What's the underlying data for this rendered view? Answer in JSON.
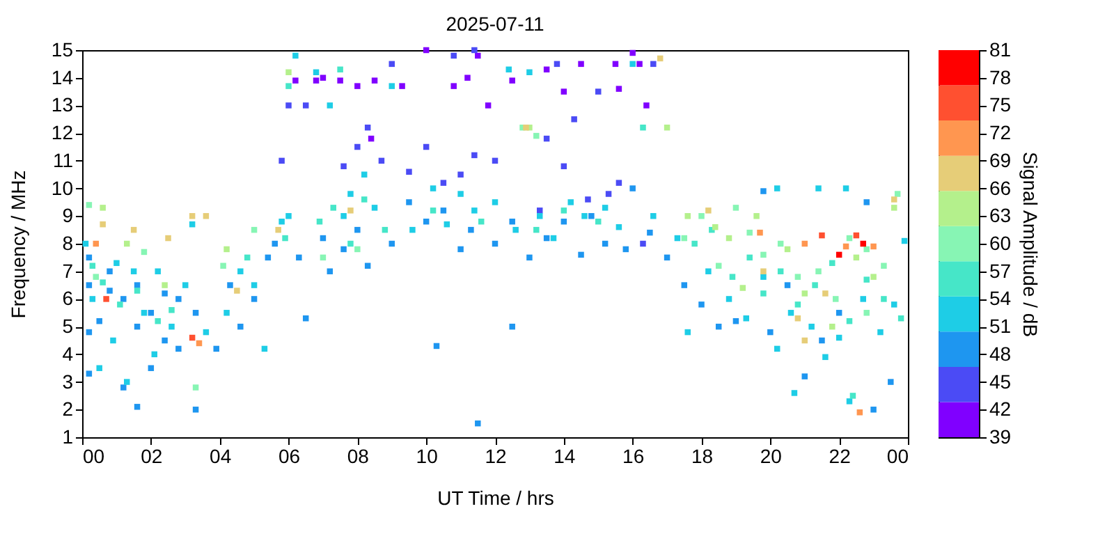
{
  "chart_data": {
    "type": "scatter",
    "title": "2025-07-11",
    "xlabel": "UT Time / hrs",
    "ylabel": "Frequency / MHz",
    "clabel": "Signal Amplitude / dB",
    "xlim": [
      0,
      24
    ],
    "xticks": [
      {
        "value": 0,
        "label": "00"
      },
      {
        "value": 2,
        "label": "02"
      },
      {
        "value": 4,
        "label": "04"
      },
      {
        "value": 6,
        "label": "06"
      },
      {
        "value": 8,
        "label": "08"
      },
      {
        "value": 10,
        "label": "10"
      },
      {
        "value": 12,
        "label": "12"
      },
      {
        "value": 14,
        "label": "14"
      },
      {
        "value": 16,
        "label": "16"
      },
      {
        "value": 18,
        "label": "18"
      },
      {
        "value": 20,
        "label": "20"
      },
      {
        "value": 22,
        "label": "22"
      },
      {
        "value": 24,
        "label": "00"
      }
    ],
    "ylim": [
      1,
      15
    ],
    "yticks": [
      1,
      2,
      3,
      4,
      5,
      6,
      7,
      8,
      9,
      10,
      11,
      12,
      13,
      14,
      15
    ],
    "clim": [
      39,
      81
    ],
    "cticks": [
      39,
      42,
      45,
      48,
      51,
      54,
      57,
      60,
      63,
      66,
      69,
      72,
      75,
      78,
      81
    ],
    "marker": "square",
    "grid": false,
    "legend": false,
    "series": [
      {
        "color": "#8000ff",
        "x": [
          6.2,
          6.8,
          7.5,
          8.0,
          8.5,
          9.3,
          10.0,
          11.2,
          11.8,
          12.5,
          13.5,
          14.5,
          15.5,
          16.0,
          15.6,
          16.4,
          8.4,
          14.0,
          16.2,
          7.0,
          10.8,
          11.5
        ],
        "values": [
          13.9,
          13.9,
          13.9,
          13.7,
          13.9,
          13.7,
          15.0,
          14.0,
          13.0,
          13.9,
          14.3,
          14.5,
          14.5,
          14.9,
          13.6,
          13.0,
          11.8,
          13.5,
          14.5,
          14.0,
          13.7,
          14.8
        ]
      },
      {
        "color": "#4b4bf5",
        "x": [
          7.6,
          8.0,
          8.3,
          8.7,
          9.5,
          10.0,
          10.5,
          11.0,
          11.4,
          12.0,
          13.5,
          14.0,
          13.3,
          14.7,
          15.3,
          15.6,
          16.3,
          6.0,
          6.5,
          9.0,
          10.8,
          11.4,
          13.8,
          15.0,
          5.8,
          16.6,
          14.3
        ],
        "values": [
          10.8,
          11.5,
          12.2,
          11.0,
          10.6,
          11.5,
          10.2,
          10.5,
          11.2,
          11.0,
          11.8,
          10.8,
          9.2,
          9.6,
          9.8,
          10.2,
          8.0,
          13.0,
          13.0,
          14.5,
          14.8,
          15.0,
          14.5,
          13.5,
          11.0,
          14.5,
          12.5
        ]
      },
      {
        "color": "#1e96f0",
        "x": [
          0.2,
          0.2,
          0.2,
          0.2,
          0.5,
          0.8,
          0.8,
          1.2,
          1.2,
          1.6,
          1.6,
          1.6,
          2.0,
          2.0,
          2.4,
          2.4,
          2.8,
          2.8,
          3.3,
          3.3,
          3.9,
          4.3,
          4.6,
          5.0,
          5.4,
          5.6,
          6.3,
          6.5,
          7.0,
          7.2,
          7.6,
          8.0,
          8.3,
          9.0,
          9.5,
          10.0,
          10.5,
          11.0,
          11.3,
          12.0,
          12.5,
          13.0,
          13.5,
          14.0,
          14.5,
          15.2,
          15.8,
          16.5,
          17.0,
          17.5,
          18.0,
          18.5,
          19.0,
          20.0,
          20.5,
          21.0,
          21.5,
          22.0,
          23.0,
          23.5,
          14.8,
          16.0,
          10.3,
          11.5,
          12.5,
          19.8,
          22.8
        ],
        "values": [
          7.5,
          6.5,
          4.8,
          3.3,
          5.2,
          7.0,
          6.3,
          2.8,
          6.0,
          6.5,
          5.0,
          2.1,
          5.5,
          3.5,
          6.2,
          4.5,
          6.0,
          4.2,
          5.5,
          2.0,
          4.2,
          6.5,
          5.0,
          6.0,
          7.5,
          8.0,
          7.5,
          5.3,
          8.2,
          7.0,
          7.8,
          8.5,
          7.2,
          8.0,
          9.5,
          8.8,
          9.2,
          7.8,
          8.5,
          8.0,
          8.8,
          7.5,
          8.2,
          8.8,
          7.6,
          8.0,
          7.8,
          8.4,
          7.5,
          6.5,
          5.8,
          5.0,
          5.2,
          4.8,
          6.5,
          3.2,
          4.5,
          5.5,
          2.0,
          3.0,
          9.0,
          10.0,
          4.3,
          1.5,
          5.0,
          9.9,
          9.5
        ]
      },
      {
        "color": "#1ecde6",
        "x": [
          0.1,
          0.3,
          0.5,
          0.9,
          1.0,
          1.3,
          1.5,
          1.8,
          2.1,
          2.2,
          2.6,
          3.0,
          3.2,
          3.6,
          4.2,
          4.6,
          5.0,
          5.3,
          5.8,
          6.0,
          6.2,
          6.8,
          7.2,
          7.6,
          7.8,
          8.2,
          8.5,
          9.0,
          9.6,
          10.2,
          10.6,
          11.0,
          11.4,
          12.0,
          12.4,
          12.6,
          13.0,
          13.3,
          13.7,
          14.2,
          14.6,
          15.2,
          15.6,
          16.0,
          16.6,
          17.3,
          17.6,
          18.2,
          18.8,
          19.3,
          19.8,
          20.2,
          20.6,
          20.7,
          21.2,
          21.6,
          22.0,
          22.3,
          22.7,
          23.2,
          23.6,
          23.9,
          21.4,
          20.2,
          22.2
        ],
        "values": [
          8.0,
          6.0,
          3.5,
          4.5,
          7.3,
          3.0,
          7.0,
          5.5,
          4.0,
          7.0,
          5.0,
          6.5,
          8.7,
          4.8,
          5.5,
          7.0,
          6.5,
          4.2,
          8.8,
          9.0,
          14.8,
          14.2,
          13.0,
          9.0,
          9.8,
          10.5,
          9.3,
          13.7,
          8.5,
          10.0,
          8.7,
          9.8,
          9.2,
          9.5,
          14.3,
          8.5,
          14.2,
          9.0,
          8.2,
          9.5,
          9.0,
          9.3,
          8.6,
          14.5,
          9.0,
          8.2,
          4.8,
          7.0,
          6.0,
          5.3,
          6.8,
          4.2,
          5.5,
          2.6,
          5.0,
          3.9,
          4.6,
          2.3,
          6.0,
          4.8,
          5.8,
          8.1,
          10.0,
          10.0,
          10.0
        ]
      },
      {
        "color": "#46e6c8",
        "x": [
          0.3,
          0.6,
          1.1,
          1.6,
          2.2,
          2.6,
          4.8,
          5.9,
          6.9,
          7.3,
          7.8,
          8.2,
          8.8,
          10.2,
          11.6,
          13.2,
          14.0,
          15.0,
          16.3,
          17.8,
          18.3,
          18.9,
          19.4,
          19.8,
          20.3,
          20.8,
          21.3,
          21.8,
          22.3,
          22.8,
          23.3,
          23.8,
          22.4,
          6.0,
          7.5
        ],
        "values": [
          7.2,
          6.6,
          5.8,
          6.3,
          5.2,
          5.6,
          7.5,
          8.2,
          8.8,
          9.3,
          8.0,
          9.6,
          8.5,
          9.2,
          8.8,
          8.5,
          9.2,
          8.8,
          12.2,
          8.0,
          8.5,
          6.8,
          7.5,
          6.2,
          7.0,
          5.8,
          6.5,
          7.3,
          5.2,
          6.7,
          6.0,
          5.3,
          2.5,
          13.7,
          14.3
        ]
      },
      {
        "color": "#87f5b4",
        "x": [
          0.2,
          0.4,
          1.8,
          3.3,
          4.1,
          5.0,
          7.0,
          8.0,
          17.5,
          18.0,
          18.5,
          19.0,
          19.4,
          19.8,
          20.3,
          20.8,
          21.4,
          21.9,
          22.3,
          22.8,
          23.3,
          23.7,
          12.8,
          13.2,
          22.8
        ],
        "values": [
          9.4,
          6.8,
          7.7,
          2.8,
          7.2,
          8.5,
          7.5,
          7.8,
          8.2,
          9.0,
          7.2,
          9.3,
          8.4,
          7.6,
          8.0,
          6.8,
          7.0,
          6.0,
          8.2,
          5.5,
          7.2,
          9.8,
          12.2,
          11.9,
          7.8
        ]
      },
      {
        "color": "#b4f08c",
        "x": [
          0.6,
          1.3,
          2.4,
          4.2,
          6.0,
          17.6,
          18.4,
          18.8,
          19.6,
          20.5,
          21.0,
          21.8,
          22.5,
          23.0,
          23.6,
          13.0,
          17.0,
          19.2
        ],
        "values": [
          9.3,
          8.0,
          6.5,
          7.8,
          14.2,
          9.0,
          8.6,
          8.2,
          9.0,
          7.8,
          6.2,
          5.0,
          7.5,
          6.8,
          9.3,
          12.2,
          12.2,
          6.4
        ]
      },
      {
        "color": "#e6cd78",
        "x": [
          0.6,
          1.5,
          2.5,
          3.2,
          3.6,
          4.5,
          5.7,
          7.8,
          12.9,
          16.8,
          18.2,
          19.8,
          20.8,
          21.6,
          23.6,
          21.0
        ],
        "values": [
          8.7,
          8.5,
          8.2,
          9.0,
          9.0,
          6.3,
          8.5,
          9.2,
          12.2,
          14.7,
          9.2,
          7.0,
          5.3,
          6.2,
          9.6,
          4.5
        ]
      },
      {
        "color": "#ff9650",
        "x": [
          0.4,
          3.4,
          19.7,
          21.0,
          22.2,
          23.0,
          22.6
        ],
        "values": [
          8.0,
          4.4,
          8.4,
          8.0,
          7.9,
          7.9,
          1.9
        ]
      },
      {
        "color": "#ff5030",
        "x": [
          0.7,
          3.2,
          21.5,
          22.5
        ],
        "values": [
          6.0,
          4.6,
          8.3,
          8.3
        ]
      },
      {
        "color": "#ff0000",
        "x": [
          22.0,
          22.7
        ],
        "values": [
          7.6,
          8.0
        ]
      }
    ]
  }
}
